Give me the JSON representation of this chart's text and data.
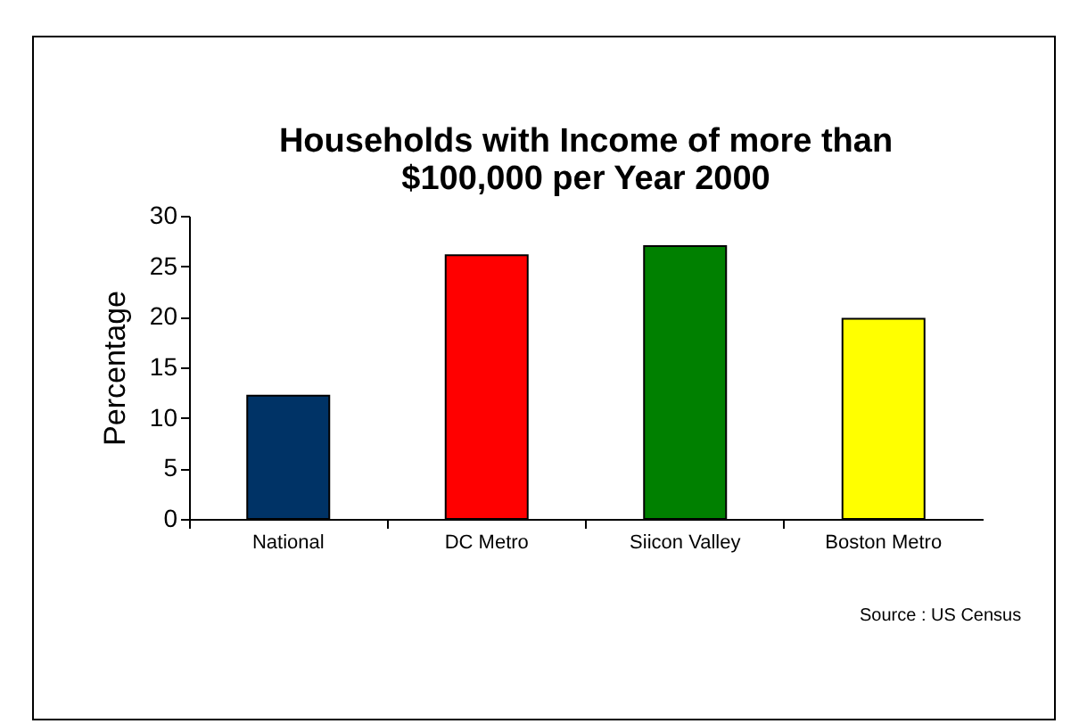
{
  "chart_data": {
    "type": "bar",
    "title": [
      "Households with Income of more than",
      "$100,000 per Year 2000"
    ],
    "ylabel": "Percentage",
    "categories": [
      "National",
      "DC Metro",
      "Siicon Valley",
      "Boston Metro"
    ],
    "values": [
      12.2,
      26.1,
      27.0,
      19.8
    ],
    "colors": [
      "#003366",
      "#ff0000",
      "#008000",
      "#ffff00"
    ],
    "ylim": [
      0,
      30
    ],
    "yticks": [
      0,
      5,
      10,
      15,
      20,
      25,
      30
    ],
    "grid": false,
    "annotations": [
      "Source : US Census"
    ]
  }
}
